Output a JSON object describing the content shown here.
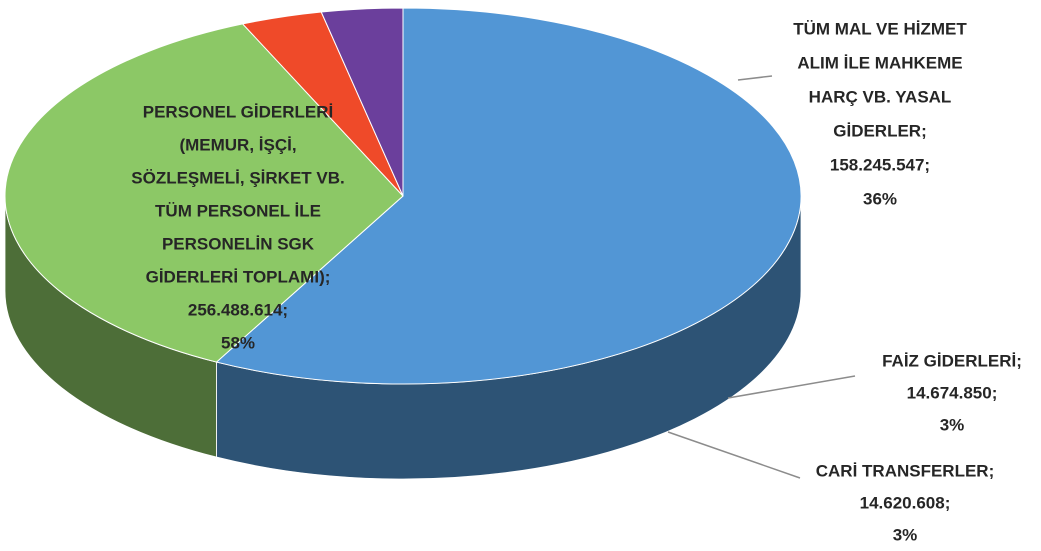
{
  "chart_data": {
    "type": "pie",
    "categories": [
      [
        "PERSONEL GİDERLERİ",
        "(MEMUR, İŞÇİ,",
        "SÖZLEŞMELİ, ŞİRKET VB.",
        "TÜM PERSONEL İLE",
        "PERSONELİN SGK",
        "GİDERLERİ TOPLAMI);"
      ],
      [
        "TÜM MAL VE HİZMET",
        "ALIM İLE MAHKEME",
        "HARÇ VB. YASAL",
        "GİDERLER;"
      ],
      [
        "FAİZ GİDERLERİ;"
      ],
      [
        "CARİ TRANSFERLER;"
      ]
    ],
    "values": [
      256488614,
      158245547,
      14674850,
      14620608
    ],
    "value_labels": [
      "256.488.614;",
      "158.245.547;",
      "14.674.850;",
      "14.620.608;"
    ],
    "percents": [
      58,
      36,
      3,
      3
    ],
    "percent_labels": [
      "58%",
      "36%",
      "3%",
      "3%"
    ],
    "colors": [
      "#5296d5",
      "#8cc866",
      "#ef4a29",
      "#6b3f9c"
    ]
  }
}
